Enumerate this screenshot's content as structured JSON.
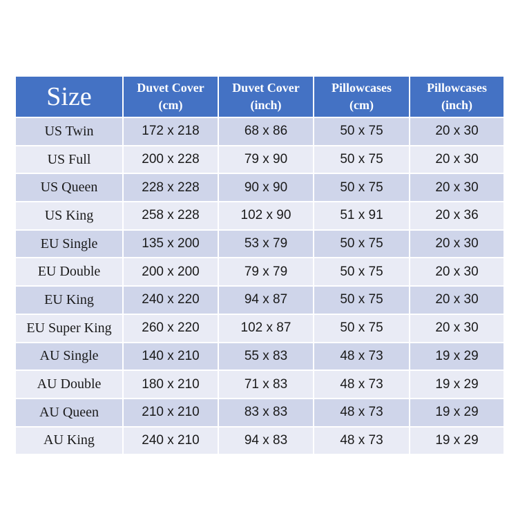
{
  "header": [
    "Size",
    "Duvet Cover\n(cm)",
    "Duvet Cover\n(inch)",
    "Pillowcases\n(cm)",
    "Pillowcases\n(inch)"
  ],
  "header_lines": [
    [
      "Size"
    ],
    [
      "Duvet Cover",
      "(cm)"
    ],
    [
      "Duvet Cover",
      "(inch)"
    ],
    [
      "Pillowcases",
      "(cm)"
    ],
    [
      "Pillowcases",
      "(inch)"
    ]
  ],
  "rows": [
    [
      "US Twin",
      "172 x 218",
      "68 x 86",
      "50 x 75",
      "20 x 30"
    ],
    [
      "US Full",
      "200 x 228",
      "79 x 90",
      "50 x 75",
      "20 x 30"
    ],
    [
      "US Queen",
      "228 x 228",
      "90 x 90",
      "50 x 75",
      "20 x 30"
    ],
    [
      "US King",
      "258 x 228",
      "102 x 90",
      "51 x 91",
      "20 x 36"
    ],
    [
      "EU Single",
      "135 x 200",
      "53 x 79",
      "50 x 75",
      "20 x 30"
    ],
    [
      "EU Double",
      "200 x 200",
      "79 x 79",
      "50 x 75",
      "20 x 30"
    ],
    [
      "EU King",
      "240 x 220",
      "94 x 87",
      "50 x 75",
      "20 x 30"
    ],
    [
      "EU Super King",
      "260 x 220",
      "102 x 87",
      "50 x 75",
      "20 x 30"
    ],
    [
      "AU Single",
      "140 x 210",
      "55 x 83",
      "48 x 73",
      "19 x 29"
    ],
    [
      "AU Double",
      "180 x 210",
      "71 x 83",
      "48 x 73",
      "19 x 29"
    ],
    [
      "AU Queen",
      "210 x 210",
      "83 x 83",
      "48 x 73",
      "19 x 29"
    ],
    [
      "AU King",
      "240 x 210",
      "94 x 83",
      "48 x 73",
      "19 x 29"
    ]
  ],
  "colors": {
    "header": "#4472C4",
    "row_odd": "#CFD5EA",
    "row_even": "#E9EBF5"
  }
}
